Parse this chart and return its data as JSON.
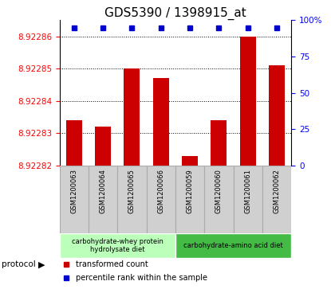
{
  "title": "GDS5390 / 1398915_at",
  "samples": [
    "GSM1200063",
    "GSM1200064",
    "GSM1200065",
    "GSM1200066",
    "GSM1200059",
    "GSM1200060",
    "GSM1200061",
    "GSM1200062"
  ],
  "bar_values": [
    8.922834,
    8.922832,
    8.92285,
    8.922847,
    8.922823,
    8.922834,
    8.92286,
    8.922851
  ],
  "percentile_values": [
    95,
    95,
    95,
    95,
    95,
    97,
    95
  ],
  "percentile_indices": [
    0,
    1,
    2,
    3,
    4,
    5,
    7
  ],
  "ymin": 8.92282,
  "ymax": 8.922865,
  "yticks": [
    8.92282,
    8.92283,
    8.92284,
    8.92285,
    8.92286
  ],
  "ytick_labels": [
    "8.92282",
    "8.92283",
    "8.92284",
    "8.92285",
    "8.92286"
  ],
  "right_yticks": [
    0,
    25,
    50,
    75,
    100
  ],
  "right_ytick_labels": [
    "0",
    "25",
    "50",
    "75",
    "100%"
  ],
  "bar_color": "#cc0000",
  "dot_color": "#0000cc",
  "bar_bottom": 8.92282,
  "protocol_groups": [
    {
      "label": "carbohydrate-whey protein\nhydrolysate diet",
      "start": 0,
      "end": 4,
      "color": "#bbffbb"
    },
    {
      "label": "carbohydrate-amino acid diet",
      "start": 4,
      "end": 8,
      "color": "#44bb44"
    }
  ],
  "legend_bar_label": "transformed count",
  "legend_dot_label": "percentile rank within the sample",
  "protocol_label": "protocol",
  "background_color": "#ffffff",
  "plot_bg_color": "#ffffff",
  "bar_width": 0.55,
  "sample_box_color": "#d0d0d0",
  "sample_box_border": "#aaaaaa"
}
